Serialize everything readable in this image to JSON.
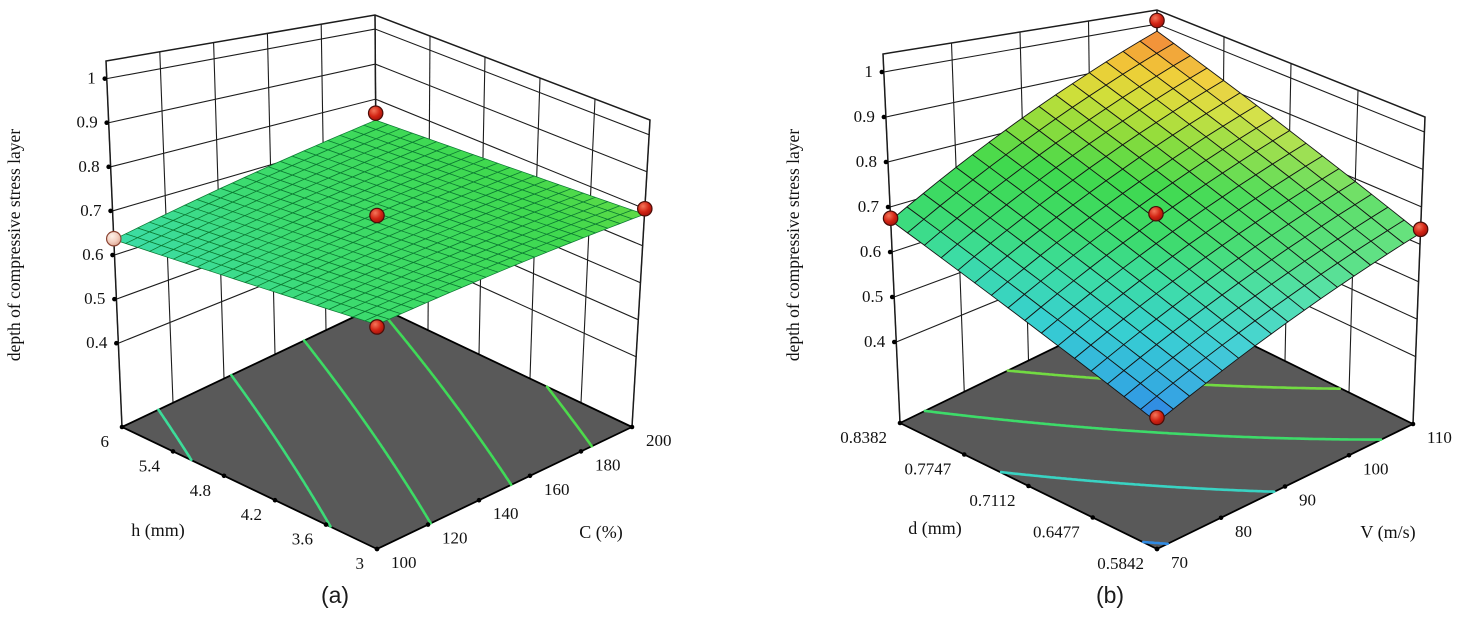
{
  "page": {
    "background": "#ffffff"
  },
  "chart_data": [
    {
      "type": "surface3d",
      "caption": "(a)",
      "z_axis": {
        "title": "depth of compressive stress layer",
        "tick_labels": [
          "1",
          "0.9",
          "0.8",
          "0.7",
          "0.6",
          "0.5",
          "0.4"
        ],
        "tick_values": [
          1,
          0.9,
          0.8,
          0.7,
          0.6,
          0.5,
          0.4
        ],
        "shown_range": [
          0.4,
          1
        ]
      },
      "axis1": {
        "title": "h (mm)",
        "tick_labels": [
          "6",
          "5.4",
          "4.8",
          "4.2",
          "3.6",
          "3"
        ],
        "tick_values": [
          6,
          5.4,
          4.8,
          4.2,
          3.6,
          3
        ]
      },
      "axis2": {
        "title": "C (%)",
        "tick_labels": [
          "100",
          "120",
          "140",
          "160",
          "180",
          "200"
        ],
        "tick_values": [
          100,
          120,
          140,
          160,
          180,
          200
        ]
      },
      "surface": {
        "corner_values": {
          "u0v0": 0.635,
          "u1v0": 0.69,
          "u1v1": 0.785,
          "u0v1": 0.74
        },
        "mesh_divisions": 22,
        "description": "near-flat green plane"
      },
      "contour_levels": [
        0.65,
        0.68,
        0.71,
        0.74,
        0.77
      ],
      "design_points": [
        {
          "u": 0,
          "v": 0,
          "z": 0.637,
          "style": "pink"
        },
        {
          "u": 1,
          "v": 0,
          "z": 0.685,
          "style": "red"
        },
        {
          "u": 1,
          "v": 1,
          "z": 0.8,
          "style": "red"
        },
        {
          "u": 0,
          "v": 1,
          "z": 0.76,
          "style": "red"
        },
        {
          "u": 0.5,
          "v": 0.5,
          "z": 0.73,
          "style": "red"
        }
      ]
    },
    {
      "type": "surface3d",
      "caption": "(b)",
      "z_axis": {
        "title": "depth of compressive stress layer",
        "tick_labels": [
          "1",
          "0.9",
          "0.8",
          "0.7",
          "0.6",
          "0.5",
          "0.4"
        ],
        "tick_values": [
          1,
          0.9,
          0.8,
          0.7,
          0.6,
          0.5,
          0.4
        ],
        "shown_range": [
          0.4,
          1
        ]
      },
      "axis1": {
        "title": "d (mm)",
        "tick_labels": [
          "0.8382",
          "0.7747",
          "0.7112",
          "0.6477",
          "0.5842"
        ],
        "tick_values": [
          0.8382,
          0.7747,
          0.7112,
          0.6477,
          0.5842
        ]
      },
      "axis2": {
        "title": "V (m/s)",
        "tick_labels": [
          "70",
          "80",
          "90",
          "100",
          "110"
        ],
        "tick_values": [
          70,
          80,
          90,
          100,
          110
        ]
      },
      "surface": {
        "corner_values": {
          "u0v0": 0.67,
          "u1v0": 0.49,
          "u1v1": 0.73,
          "u0v1": 0.98
        },
        "mesh_divisions": 16,
        "description": "tilted rainbow plane, low blue front corner, red-orange peak at back"
      },
      "contour_levels": [
        0.5,
        0.6,
        0.7,
        0.8,
        0.9
      ],
      "design_points": [
        {
          "u": 0,
          "v": 0,
          "z": 0.675,
          "style": "red"
        },
        {
          "u": 1,
          "v": 0,
          "z": 0.5,
          "style": "red"
        },
        {
          "u": 1,
          "v": 1,
          "z": 0.74,
          "style": "red"
        },
        {
          "u": 0,
          "v": 1,
          "z": 1.01,
          "style": "red"
        },
        {
          "u": 0.5,
          "v": 0.5,
          "z": 0.73,
          "style": "red"
        }
      ]
    }
  ],
  "style": {
    "floor_color": "#595959",
    "floor_edge_color": "#000000",
    "wall_line_color": "#1c1c1c",
    "text_color": "#111111",
    "point_red_fill": "#d22414",
    "point_red_rim": "#4a0d08",
    "point_pink_fill": "#f3cfc0",
    "point_pink_rim": "#8a4433",
    "surface_stroke_a": "#0c7a33",
    "surface_stroke_b": "#141414",
    "contour_width": 2.6,
    "colormap_range": [
      0.4,
      1.0
    ],
    "colormap": [
      [
        0.0,
        "#1e33cc"
      ],
      [
        0.1,
        "#2b4fe2"
      ],
      [
        0.2,
        "#33a7e2"
      ],
      [
        0.3,
        "#37cfd2"
      ],
      [
        0.4,
        "#3cdca4"
      ],
      [
        0.48,
        "#3cdb6e"
      ],
      [
        0.6,
        "#40d94e"
      ],
      [
        0.7,
        "#8bdc3c"
      ],
      [
        0.78,
        "#cfdf3a"
      ],
      [
        0.86,
        "#f0cd38"
      ],
      [
        0.93,
        "#f39a37"
      ],
      [
        1.0,
        "#ee6450"
      ]
    ]
  }
}
